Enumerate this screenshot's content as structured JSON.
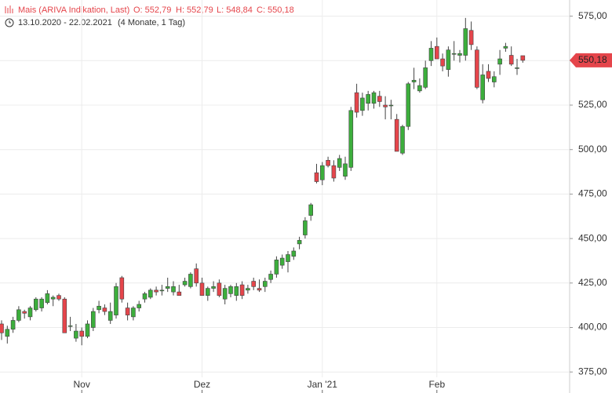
{
  "chart_data": {
    "type": "candlestick",
    "title": "Mais (ARIVA Indikation, Last)",
    "header_values": [
      "O: 552,79",
      "H: 552,79",
      "L: 548,84",
      "C: 550,18"
    ],
    "date_range": "13.10.2020 - 22.02.2021",
    "duration": "(4 Monate, 1 Tag)",
    "categories": [
      null,
      null,
      null,
      null,
      null,
      null,
      null,
      null,
      null,
      null,
      null,
      null,
      null,
      null,
      "Nov",
      null,
      null,
      null,
      null,
      null,
      null,
      null,
      null,
      null,
      null,
      null,
      null,
      null,
      null,
      null,
      null,
      null,
      null,
      null,
      null,
      "Dez",
      null,
      null,
      null,
      null,
      null,
      null,
      null,
      null,
      null,
      null,
      null,
      null,
      null,
      null,
      null,
      null,
      null,
      null,
      null,
      null,
      "Jan '21",
      null,
      null,
      null,
      null,
      null,
      null,
      null,
      null,
      null,
      null,
      null,
      null,
      null,
      null,
      null,
      null,
      null,
      null,
      null,
      "Feb",
      null,
      null,
      null,
      null,
      null,
      null,
      null,
      null,
      null,
      null,
      null,
      null,
      null,
      null,
      null
    ],
    "open": [
      402,
      395,
      399,
      404,
      409,
      406,
      410,
      411,
      414,
      416,
      418,
      416,
      401,
      394,
      398,
      395,
      400,
      410,
      411,
      404,
      407,
      428,
      411,
      406,
      411,
      416,
      417,
      421,
      421,
      422,
      420,
      420,
      424,
      423,
      433,
      425,
      418,
      422,
      425,
      416,
      419,
      418,
      424,
      421,
      426,
      422,
      423,
      427,
      430,
      435,
      437,
      440,
      447,
      452,
      463,
      487,
      483,
      494,
      491,
      490,
      485,
      490,
      532,
      522,
      526,
      526,
      530,
      525,
      525,
      517,
      498,
      513,
      538,
      533,
      535,
      550,
      558,
      551,
      545,
      554,
      553,
      553,
      567,
      556,
      528,
      544,
      538,
      548,
      557,
      553,
      546,
      552.79
    ],
    "high": [
      404,
      401,
      406,
      412,
      410,
      412,
      417,
      417,
      421,
      418,
      419,
      417,
      406,
      402,
      400,
      404,
      411,
      415,
      413,
      414,
      425,
      429,
      414,
      412,
      415,
      420,
      422,
      423,
      424,
      428,
      426,
      424,
      428,
      431,
      436,
      428,
      423,
      426,
      427,
      424,
      424,
      425,
      426,
      424,
      428,
      427,
      428,
      432,
      440,
      441,
      443,
      445,
      451,
      462,
      470,
      492,
      493,
      496,
      494,
      497,
      496,
      524,
      537,
      532,
      533,
      533,
      533,
      530,
      528,
      520,
      514,
      538,
      546,
      540,
      550,
      561,
      563,
      554,
      558,
      561,
      556,
      574,
      572,
      558,
      548,
      548,
      544,
      556,
      560,
      558,
      551,
      552.79
    ],
    "low": [
      393,
      391,
      397,
      403,
      405,
      404,
      409,
      409,
      413,
      412,
      415,
      397,
      398,
      392,
      390,
      394,
      398,
      408,
      407,
      402,
      405,
      414,
      404,
      404,
      409,
      414,
      416,
      418,
      418,
      420,
      418,
      418,
      423,
      422,
      423,
      418,
      415,
      420,
      417,
      413,
      417,
      415,
      416,
      419,
      421,
      420,
      420,
      425,
      428,
      433,
      431,
      438,
      444,
      450,
      460,
      481,
      480,
      490,
      482,
      488,
      483,
      488,
      518,
      519,
      522,
      523,
      524,
      517,
      517,
      499,
      497,
      511,
      534,
      532,
      534,
      547,
      552,
      544,
      541,
      550,
      549,
      550,
      556,
      534,
      526,
      538,
      535,
      542,
      555,
      547,
      542,
      548.84
    ],
    "close": [
      397,
      399,
      404,
      410,
      408,
      411,
      416,
      416,
      419,
      417,
      416,
      397,
      401,
      398,
      395,
      402,
      409,
      412,
      409,
      409,
      423,
      416,
      407,
      411,
      413,
      419,
      421,
      420,
      421,
      423,
      423,
      418,
      426,
      430,
      425,
      418,
      422,
      423,
      418,
      422,
      423,
      423,
      418,
      422,
      423,
      421,
      426,
      430,
      438,
      439,
      441,
      443,
      449,
      460,
      469,
      482,
      491,
      491,
      484,
      495,
      492,
      522,
      521,
      529,
      531,
      532,
      527,
      524,
      525,
      499,
      513,
      537,
      539,
      536,
      546,
      557,
      551,
      547,
      556,
      554,
      554,
      568,
      559,
      535,
      542,
      540,
      541,
      551,
      558,
      548,
      546,
      550.18
    ],
    "up_color": "#3cae3c",
    "down_color": "#e5454b",
    "ylim": [
      372,
      581
    ],
    "yticks": [
      {
        "value": 375,
        "label": "375,00"
      },
      {
        "value": 400,
        "label": "400,00"
      },
      {
        "value": 425,
        "label": "425,00"
      },
      {
        "value": 450,
        "label": "450,00"
      },
      {
        "value": 475,
        "label": "475,00"
      },
      {
        "value": 500,
        "label": "500,00"
      },
      {
        "value": 525,
        "label": "525,00"
      },
      {
        "value": 550,
        "label": "550,00"
      },
      {
        "value": 575,
        "label": "575,00"
      }
    ],
    "last_price": {
      "value": 550.18,
      "label": "550,18"
    },
    "grid": true
  }
}
